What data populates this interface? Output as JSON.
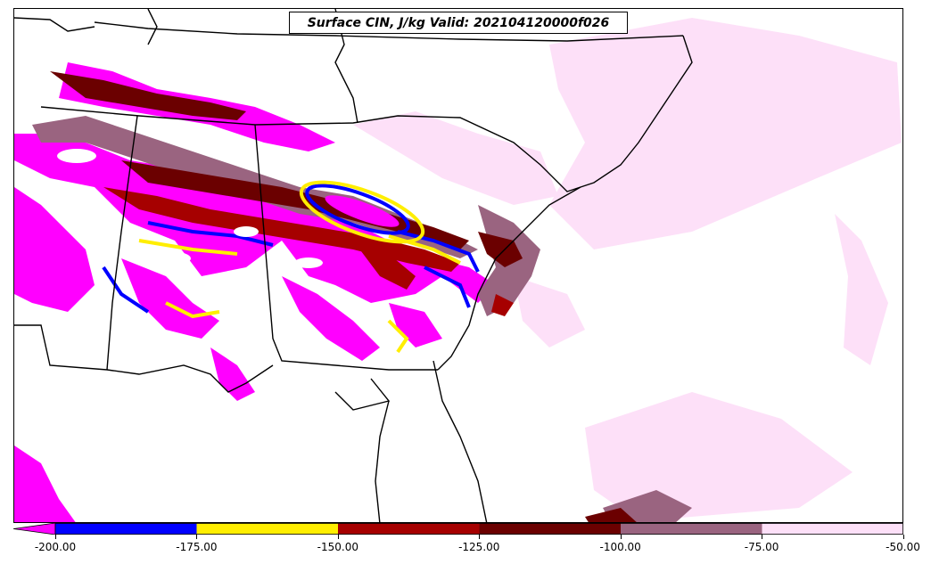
{
  "title": "Surface CIN, J/kg Valid: 202104120000f026",
  "colorbar": {
    "colors": [
      "#ff00ff",
      "#0000ff",
      "#ffee00",
      "#a60000",
      "#6b0000",
      "#9a6480",
      "#fde0f8"
    ],
    "tick_labels": [
      "-200.00",
      "-175.00",
      "-150.00",
      "-125.00",
      "-100.00",
      "-75.00",
      "-50.00"
    ]
  },
  "map_colors": {
    "magenta": "#ff00ff",
    "blue": "#0000ff",
    "yellow": "#ffee00",
    "red": "#a60000",
    "darkred": "#6b0000",
    "mauve": "#9a6480",
    "pink": "#fde0f8"
  }
}
